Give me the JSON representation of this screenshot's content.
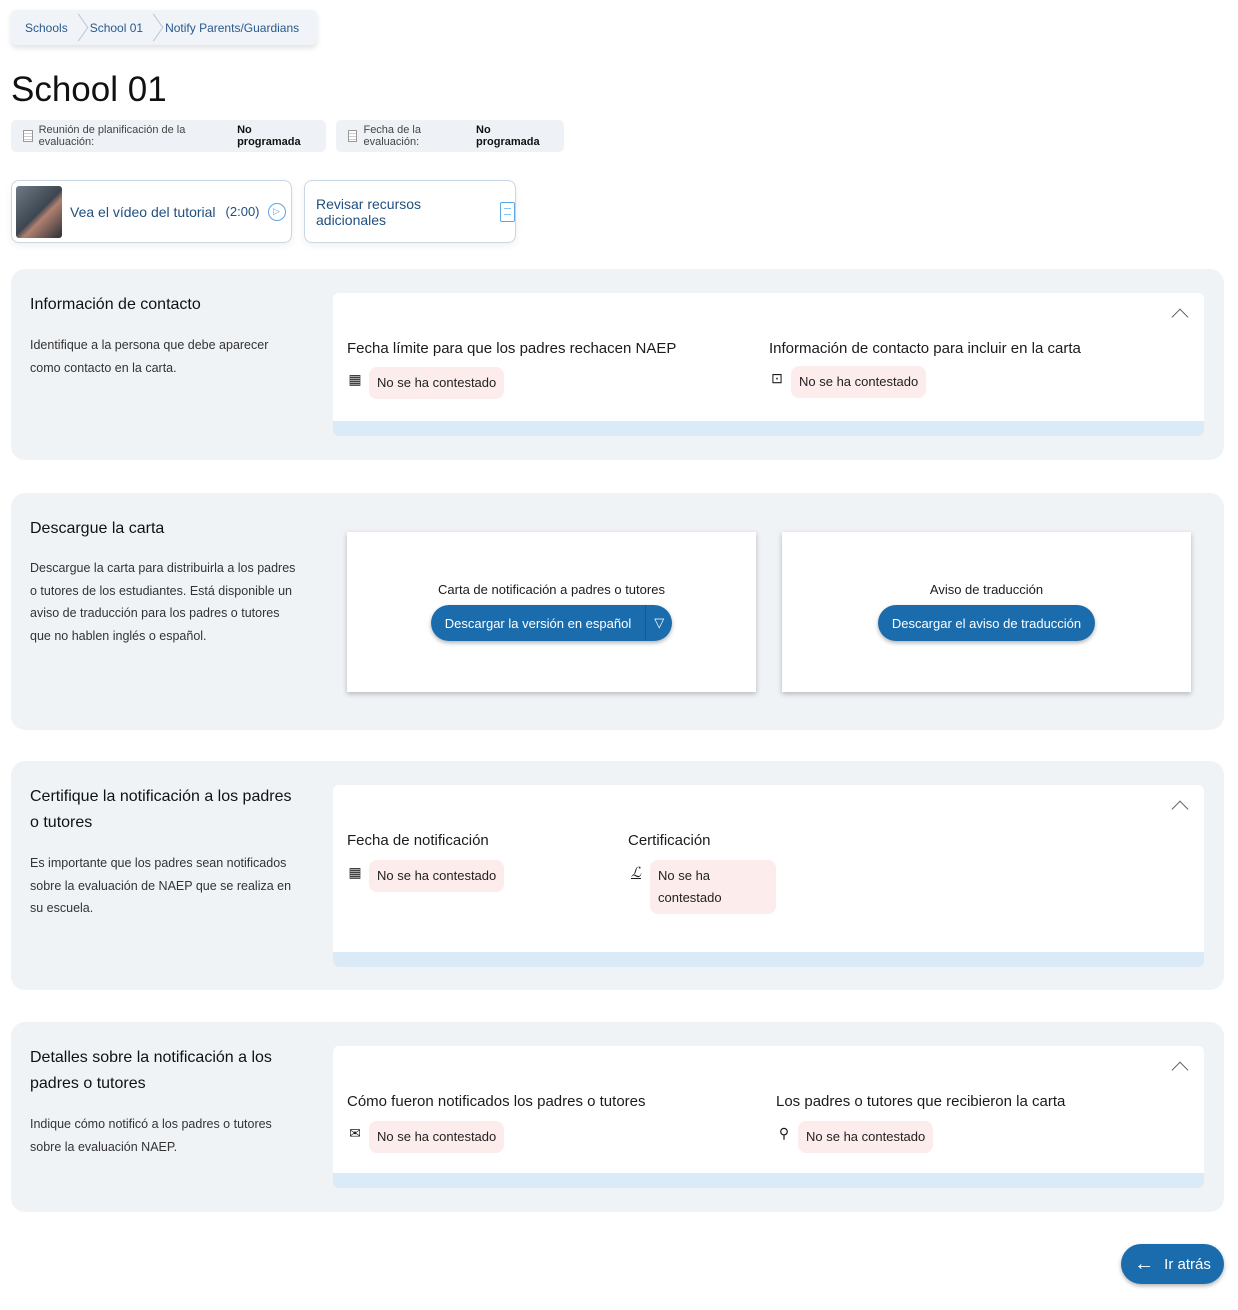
{
  "breadcrumb": [
    "Schools",
    "School 01",
    "Notify Parents/Guardians"
  ],
  "title": "School 01",
  "status_pills": [
    {
      "label": "Reunión de planificación de la evaluación:",
      "value": "No programada"
    },
    {
      "label": "Fecha de la evaluación:",
      "value": "No programada"
    }
  ],
  "resources": {
    "video_label": "Vea el vídeo del tutorial",
    "video_duration": "(2:00)",
    "additional_label": "Revisar recursos adicionales"
  },
  "sections": [
    {
      "title": "Información de contacto",
      "description": "Identifique a la persona que debe aparecer como contacto en la carta.",
      "fields": [
        {
          "label": "Fecha límite para que los padres rechacen NAEP",
          "icon": "calendar-icon",
          "value": "No se ha contestado"
        },
        {
          "label": "Información de contacto para incluir en la carta",
          "icon": "contact-card-icon",
          "value": "No se ha contestado"
        }
      ]
    },
    {
      "title": "Descargue la carta",
      "description": "Descargue la carta para distribuirla a los padres o tutores de los estudiantes. Está disponible un aviso de traducción para los padres o tutores que no hablen inglés o español.",
      "downloads": [
        {
          "title": "Carta de notificación a padres o tutores",
          "button": "Descargar la versión en español"
        },
        {
          "title": "Aviso de traducción",
          "button": "Descargar el aviso de traducción"
        }
      ]
    },
    {
      "title": "Certifique la notificación a los padres o tutores",
      "description": "Es importante que los padres sean notificados sobre la evaluación de NAEP que se realiza en su escuela.",
      "fields": [
        {
          "label": "Fecha de notificación",
          "icon": "calendar-icon",
          "value": "No se ha contestado"
        },
        {
          "label": "Certificación",
          "icon": "signature-icon",
          "value": "No se ha contestado"
        }
      ]
    },
    {
      "title": "Detalles sobre la notificación a los padres o tutores",
      "description": "Indique cómo notificó a los padres o tutores sobre la evaluación NAEP.",
      "fields": [
        {
          "label": "Cómo fueron notificados los padres o tutores",
          "icon": "envelope-icon",
          "value": "No se ha contestado"
        },
        {
          "label": "Los padres o tutores que recibieron la carta",
          "icon": "person-icon",
          "value": "No se ha contestado"
        }
      ]
    }
  ],
  "back_button": "Ir atrás",
  "colors": {
    "primary": "#1a6cad",
    "unanswered_bg": "#fdecec",
    "section_bg": "#f0f3f6"
  }
}
